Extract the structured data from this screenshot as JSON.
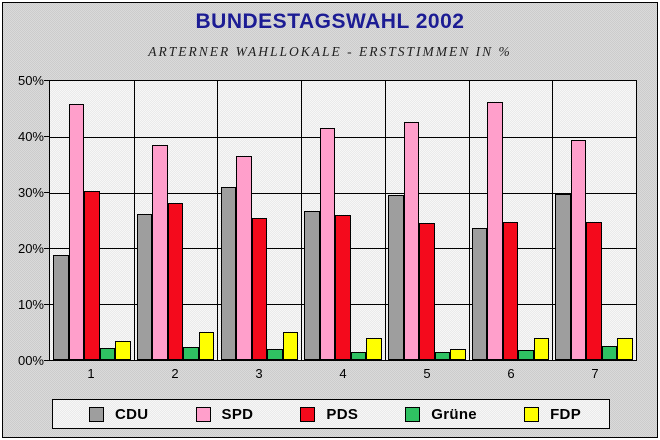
{
  "frame": {
    "outer_background": "#ffffff",
    "inner_background": "#d4d4d4",
    "border_color": "#000000"
  },
  "title_color": "#1c1c94",
  "chart_data": {
    "type": "bar",
    "title": "BUNDESTAGSWAHL 2002",
    "subtitle": "ARTERNER WAHLLOKALE - ERSTSTIMMEN IN %",
    "categories": [
      "1",
      "2",
      "3",
      "4",
      "5",
      "6",
      "7"
    ],
    "y_ticks": [
      "50%",
      "40%",
      "30%",
      "20%",
      "10%",
      "00%"
    ],
    "ylim": [
      0,
      50
    ],
    "grid": true,
    "legend_position": "bottom",
    "xlabel": "",
    "ylabel": "",
    "series": [
      {
        "name": "CDU",
        "color": "#9e9e9e",
        "values": [
          18.8,
          26.2,
          31.0,
          26.7,
          29.5,
          23.7,
          29.7
        ]
      },
      {
        "name": "SPD",
        "color": "#ff9fcb",
        "values": [
          45.8,
          38.5,
          36.6,
          41.5,
          42.6,
          46.2,
          39.4
        ]
      },
      {
        "name": "PDS",
        "color": "#f40a1c",
        "values": [
          30.2,
          28.2,
          25.5,
          26.0,
          24.6,
          24.7,
          24.7
        ]
      },
      {
        "name": "Grüne",
        "color": "#2fc162",
        "values": [
          2.1,
          2.3,
          1.9,
          1.5,
          1.5,
          1.8,
          2.5
        ]
      },
      {
        "name": "FDP",
        "color": "#ffff00",
        "values": [
          3.4,
          5.0,
          5.0,
          4.0,
          2.0,
          4.0,
          4.0
        ]
      }
    ]
  }
}
